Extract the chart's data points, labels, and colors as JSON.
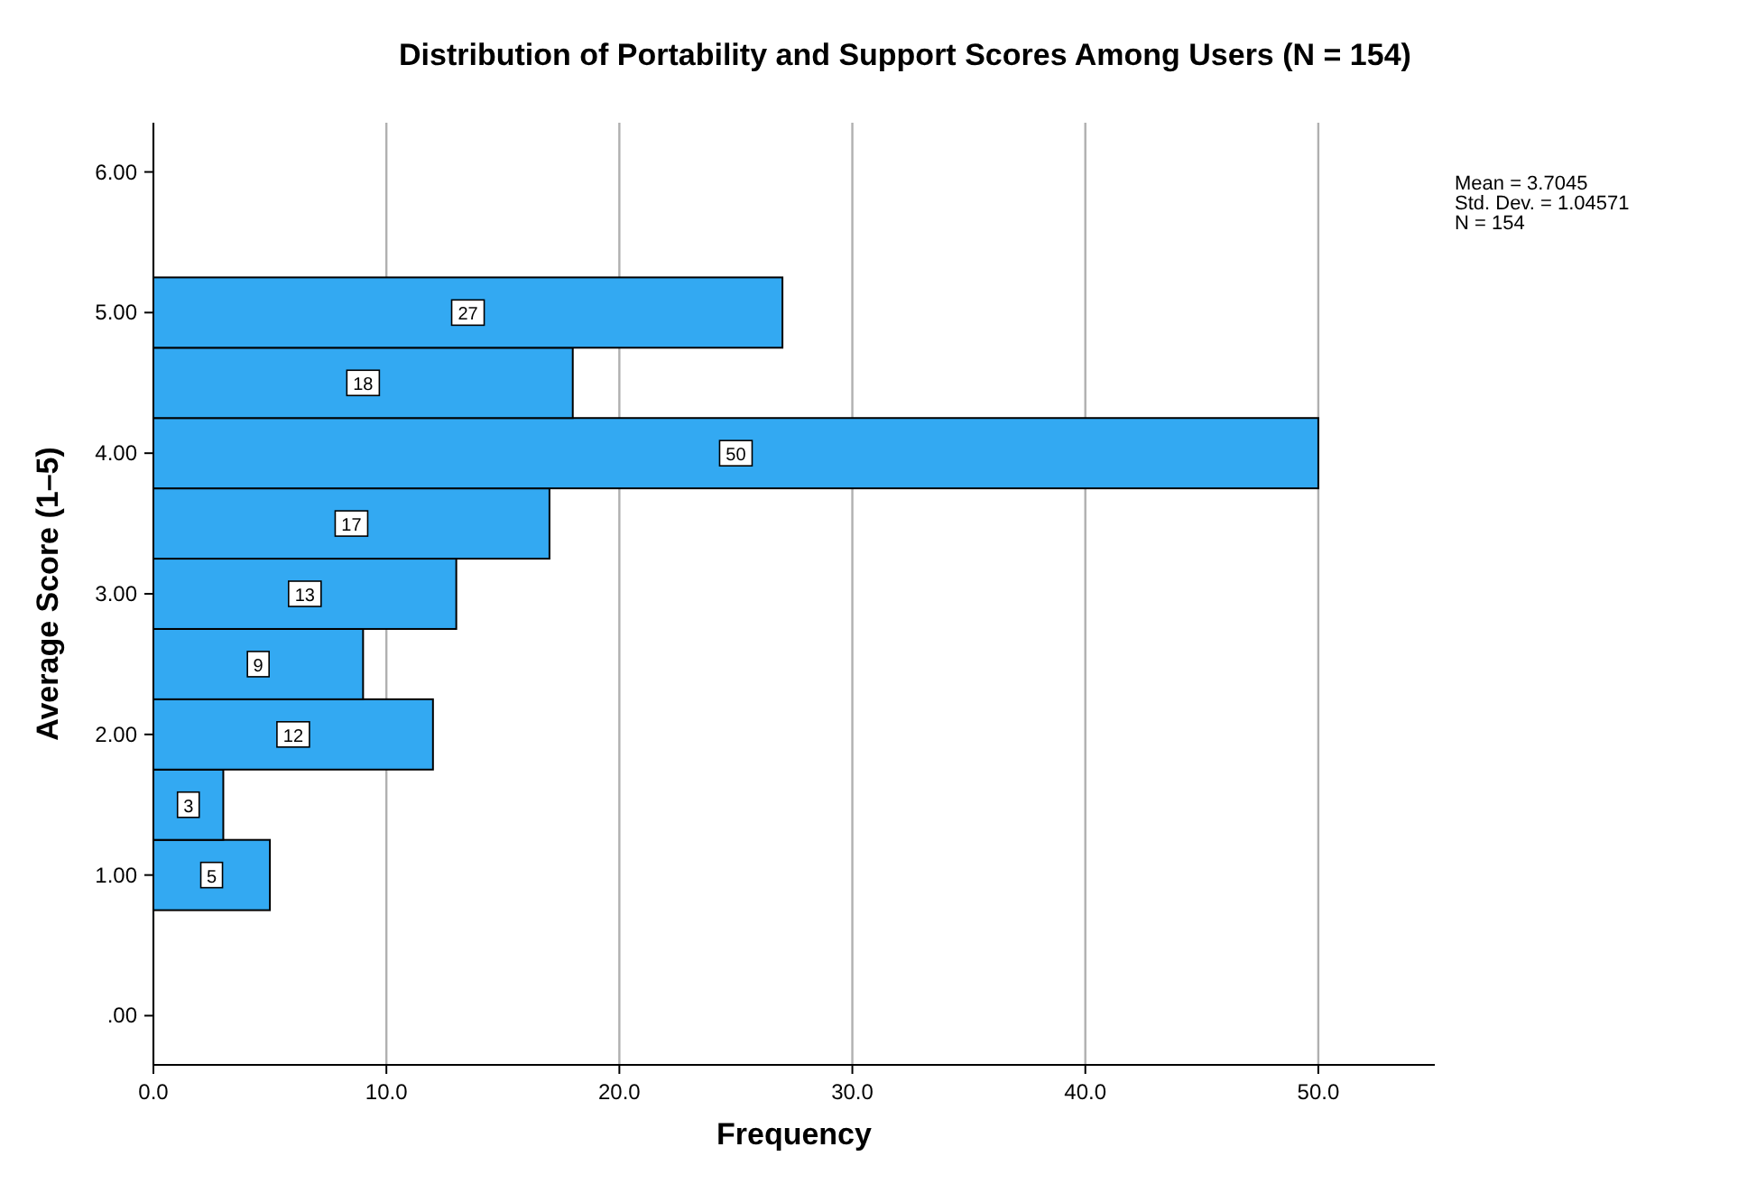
{
  "chart_data": {
    "type": "histogram",
    "orientation": "horizontal",
    "title": "Distribution of Portability and Support Scores Among Users (N = 154)",
    "xlabel": "Frequency",
    "ylabel": "Average Score (1–5)",
    "bins": [
      0.75,
      1.25,
      1.75,
      2.25,
      2.75,
      3.25,
      3.75,
      4.25,
      4.75,
      5.25
    ],
    "values": [
      5,
      3,
      12,
      9,
      13,
      17,
      50,
      18,
      27
    ],
    "color": "#33a9f2",
    "data_labels": true,
    "grid": "x",
    "xlim": [
      0,
      55
    ],
    "xticks": [
      {
        "value": 0,
        "label": "0.0"
      },
      {
        "value": 10,
        "label": "10.0"
      },
      {
        "value": 20,
        "label": "20.0"
      },
      {
        "value": 30,
        "label": "30.0"
      },
      {
        "value": 40,
        "label": "40.0"
      },
      {
        "value": 50,
        "label": "50.0"
      }
    ],
    "ylim": [
      -0.35,
      6.35
    ],
    "yticks": [
      {
        "value": 0,
        "label": ".00"
      },
      {
        "value": 1,
        "label": "1.00"
      },
      {
        "value": 2,
        "label": "2.00"
      },
      {
        "value": 3,
        "label": "3.00"
      },
      {
        "value": 4,
        "label": "4.00"
      },
      {
        "value": 5,
        "label": "5.00"
      },
      {
        "value": 6,
        "label": "6.00"
      }
    ],
    "annotations": [
      "Mean = 3.7045",
      "Std. Dev. = 1.04571",
      "N = 154"
    ]
  }
}
